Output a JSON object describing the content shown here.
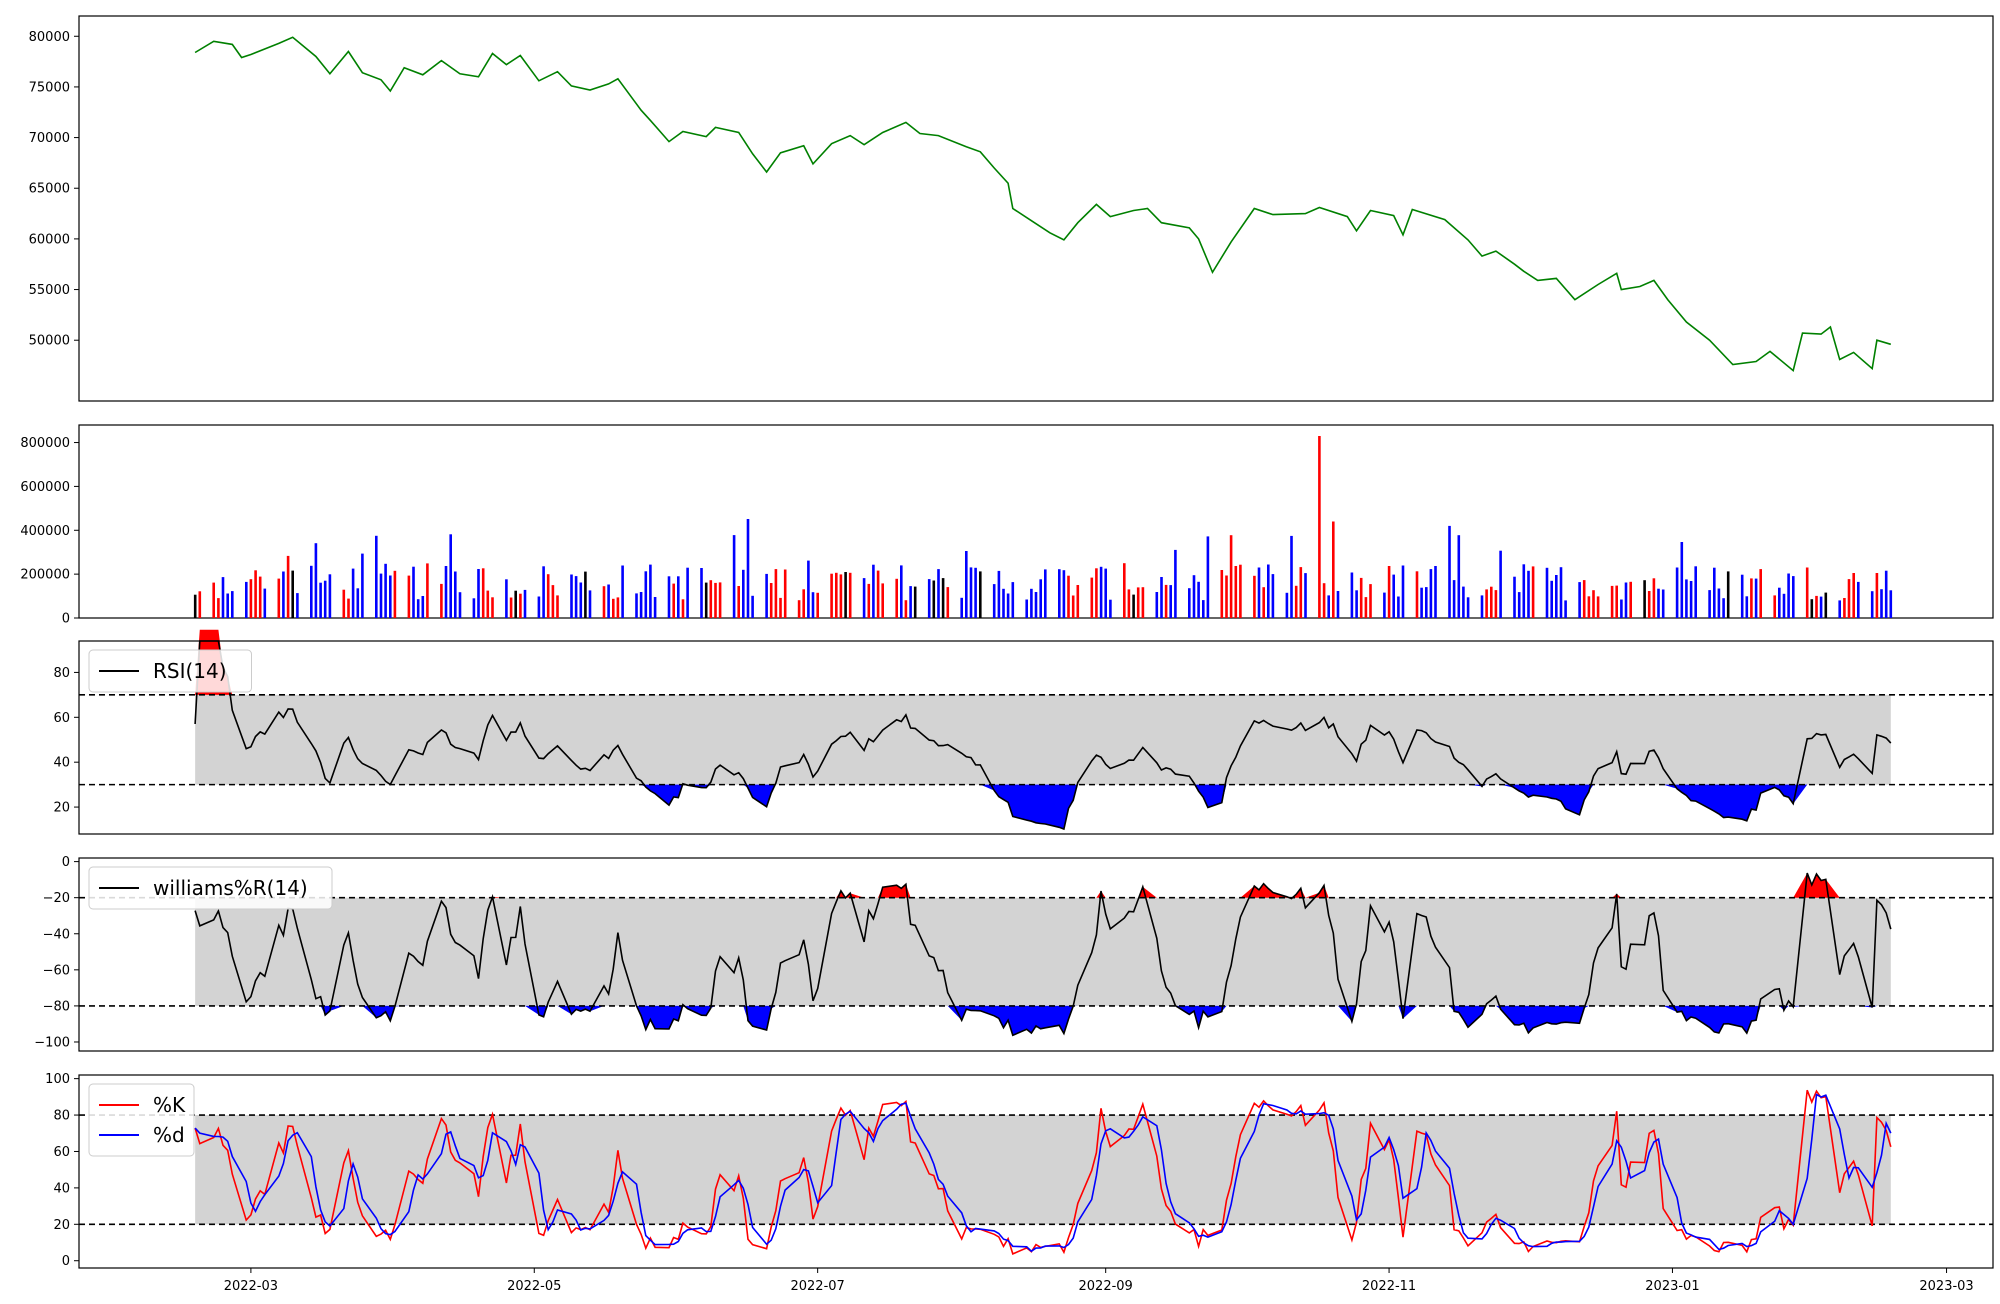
{
  "chart_data": [
    {
      "type": "line",
      "panel": "price",
      "title": "",
      "xlabel": "",
      "ylabel": "",
      "x_start": "2022-02-17",
      "x_end": "2023-02-17",
      "ylim": [
        44000,
        82000
      ],
      "yticks": [
        "50000",
        "55000",
        "60000",
        "65000",
        "70000",
        "75000",
        "80000"
      ],
      "line_color": "#008000",
      "grid": false,
      "series": [
        {
          "name": "",
          "points": [
            [
              "2022-02-17",
              78400
            ],
            [
              "2022-02-21",
              79500
            ],
            [
              "2022-02-25",
              79200
            ],
            [
              "2022-02-27",
              77900
            ],
            [
              "2022-03-01",
              78200
            ],
            [
              "2022-03-07",
              79300
            ],
            [
              "2022-03-10",
              79900
            ],
            [
              "2022-03-15",
              78000
            ],
            [
              "2022-03-18",
              76300
            ],
            [
              "2022-03-22",
              78500
            ],
            [
              "2022-03-25",
              76400
            ],
            [
              "2022-03-29",
              75700
            ],
            [
              "2022-03-31",
              74600
            ],
            [
              "2022-04-03",
              76900
            ],
            [
              "2022-04-07",
              76200
            ],
            [
              "2022-04-11",
              77600
            ],
            [
              "2022-04-15",
              76300
            ],
            [
              "2022-04-19",
              76000
            ],
            [
              "2022-04-22",
              78300
            ],
            [
              "2022-04-25",
              77200
            ],
            [
              "2022-04-28",
              78100
            ],
            [
              "2022-05-02",
              75600
            ],
            [
              "2022-05-06",
              76500
            ],
            [
              "2022-05-09",
              75100
            ],
            [
              "2022-05-13",
              74700
            ],
            [
              "2022-05-17",
              75300
            ],
            [
              "2022-05-19",
              75800
            ],
            [
              "2022-05-24",
              72700
            ],
            [
              "2022-05-26",
              71700
            ],
            [
              "2022-05-30",
              69600
            ],
            [
              "2022-06-02",
              70600
            ],
            [
              "2022-06-07",
              70100
            ],
            [
              "2022-06-09",
              71000
            ],
            [
              "2022-06-14",
              70500
            ],
            [
              "2022-06-17",
              68400
            ],
            [
              "2022-06-20",
              66600
            ],
            [
              "2022-06-23",
              68500
            ],
            [
              "2022-06-28",
              69200
            ],
            [
              "2022-06-30",
              67400
            ],
            [
              "2022-07-04",
              69400
            ],
            [
              "2022-07-08",
              70200
            ],
            [
              "2022-07-11",
              69300
            ],
            [
              "2022-07-15",
              70500
            ],
            [
              "2022-07-20",
              71500
            ],
            [
              "2022-07-23",
              70400
            ],
            [
              "2022-07-27",
              70200
            ],
            [
              "2022-08-02",
              69100
            ],
            [
              "2022-08-05",
              68600
            ],
            [
              "2022-08-08",
              67000
            ],
            [
              "2022-08-11",
              65500
            ],
            [
              "2022-08-12",
              63000
            ],
            [
              "2022-08-16",
              61800
            ],
            [
              "2022-08-20",
              60600
            ],
            [
              "2022-08-23",
              59900
            ],
            [
              "2022-08-26",
              61600
            ],
            [
              "2022-08-30",
              63400
            ],
            [
              "2022-09-02",
              62200
            ],
            [
              "2022-09-07",
              62800
            ],
            [
              "2022-09-10",
              63000
            ],
            [
              "2022-09-13",
              61600
            ],
            [
              "2022-09-19",
              61100
            ],
            [
              "2022-09-21",
              60000
            ],
            [
              "2022-09-24",
              56700
            ],
            [
              "2022-09-28",
              59700
            ],
            [
              "2022-10-03",
              63000
            ],
            [
              "2022-10-07",
              62400
            ],
            [
              "2022-10-14",
              62500
            ],
            [
              "2022-10-17",
              63100
            ],
            [
              "2022-10-23",
              62200
            ],
            [
              "2022-10-25",
              60800
            ],
            [
              "2022-10-28",
              62800
            ],
            [
              "2022-11-02",
              62300
            ],
            [
              "2022-11-04",
              60400
            ],
            [
              "2022-11-06",
              62900
            ],
            [
              "2022-11-13",
              61900
            ],
            [
              "2022-11-18",
              59900
            ],
            [
              "2022-11-21",
              58300
            ],
            [
              "2022-11-24",
              58800
            ],
            [
              "2022-11-28",
              57500
            ],
            [
              "2022-11-30",
              56800
            ],
            [
              "2022-12-03",
              55900
            ],
            [
              "2022-12-07",
              56100
            ],
            [
              "2022-12-11",
              54000
            ],
            [
              "2022-12-16",
              55500
            ],
            [
              "2022-12-20",
              56600
            ],
            [
              "2022-12-21",
              55000
            ],
            [
              "2022-12-25",
              55300
            ],
            [
              "2022-12-28",
              55900
            ],
            [
              "2022-12-31",
              54000
            ],
            [
              "2023-01-04",
              51800
            ],
            [
              "2023-01-09",
              50000
            ],
            [
              "2023-01-14",
              47600
            ],
            [
              "2023-01-19",
              47900
            ],
            [
              "2023-01-22",
              48900
            ],
            [
              "2023-01-27",
              47000
            ],
            [
              "2023-01-29",
              50700
            ],
            [
              "2023-02-02",
              50600
            ],
            [
              "2023-02-04",
              51300
            ],
            [
              "2023-02-06",
              48100
            ],
            [
              "2023-02-09",
              48800
            ],
            [
              "2023-02-13",
              47200
            ],
            [
              "2023-02-14",
              50000
            ],
            [
              "2023-02-17",
              49600
            ],
            [
              "2022-12-31",
              49600
            ]
          ]
        }
      ]
    },
    {
      "type": "bar",
      "panel": "volume",
      "title": "",
      "ylim": [
        0,
        880000
      ],
      "yticks": [
        "0",
        "200000",
        "400000",
        "600000",
        "800000"
      ],
      "colors": {
        "up": "#ff0000",
        "down": "#0000ff",
        "flat": "#000000"
      },
      "grid": false
    },
    {
      "type": "line",
      "panel": "rsi",
      "title": "",
      "ylim": [
        8,
        94
      ],
      "yticks": [
        "20",
        "40",
        "60",
        "80"
      ],
      "thresholds": [
        30,
        70
      ],
      "legend": [
        "RSI(14)"
      ],
      "legend_position": "top-left",
      "band_color": "#d3d3d3",
      "overbought_color": "#ff0000",
      "oversold_color": "#0000ff"
    },
    {
      "type": "line",
      "panel": "williams",
      "title": "",
      "ylim": [
        -105,
        2
      ],
      "yticks": [
        "−100",
        "−80",
        "−60",
        "−40",
        "−20",
        "0"
      ],
      "thresholds": [
        -80,
        -20
      ],
      "legend": [
        "williams%R(14)"
      ],
      "legend_position": "top-left"
    },
    {
      "type": "line",
      "panel": "stochastic",
      "title": "",
      "ylim": [
        -4,
        102
      ],
      "yticks": [
        "0",
        "20",
        "40",
        "60",
        "80",
        "100"
      ],
      "thresholds": [
        20,
        80
      ],
      "legend": [
        "%K",
        "%d"
      ],
      "legend_colors": [
        "#ff0000",
        "#0000ff"
      ],
      "legend_position": "top-left",
      "xticks": [
        "2022-03",
        "2022-05",
        "2022-07",
        "2022-09",
        "2022-11",
        "2023-01",
        "2023-03"
      ]
    }
  ]
}
